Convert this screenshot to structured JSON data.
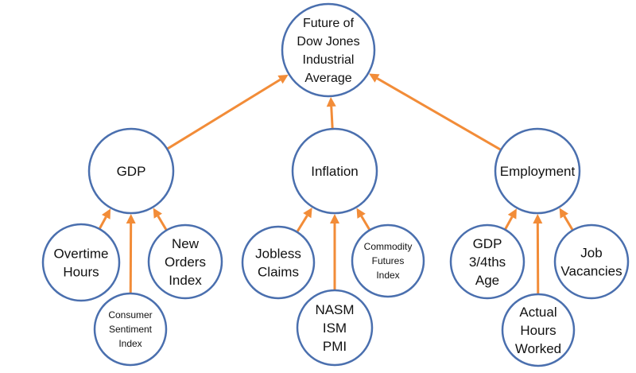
{
  "colors": {
    "node_border": "#4a6fae",
    "edge": "#f28c38",
    "text": "#111111"
  },
  "root": {
    "lines": [
      "Future of",
      "Dow Jones",
      "Industrial",
      "Average"
    ]
  },
  "categories": [
    {
      "lines": [
        "GDP"
      ],
      "children": [
        {
          "lines": [
            "Overtime",
            "Hours"
          ]
        },
        {
          "lines": [
            "Consumer",
            "Sentiment",
            "Index"
          ]
        },
        {
          "lines": [
            "New",
            "Orders",
            "Index"
          ]
        }
      ]
    },
    {
      "lines": [
        "Inflation"
      ],
      "children": [
        {
          "lines": [
            "Jobless",
            "Claims"
          ]
        },
        {
          "lines": [
            "NASM",
            "ISM",
            "PMI"
          ]
        },
        {
          "lines": [
            "Commodity",
            "Futures",
            "Index"
          ]
        }
      ]
    },
    {
      "lines": [
        "Employment"
      ],
      "children": [
        {
          "lines": [
            "GDP",
            "3/4ths",
            "Age"
          ]
        },
        {
          "lines": [
            "Actual",
            "Hours",
            "Worked"
          ]
        },
        {
          "lines": [
            "Job",
            "Vacancies"
          ]
        }
      ]
    }
  ]
}
